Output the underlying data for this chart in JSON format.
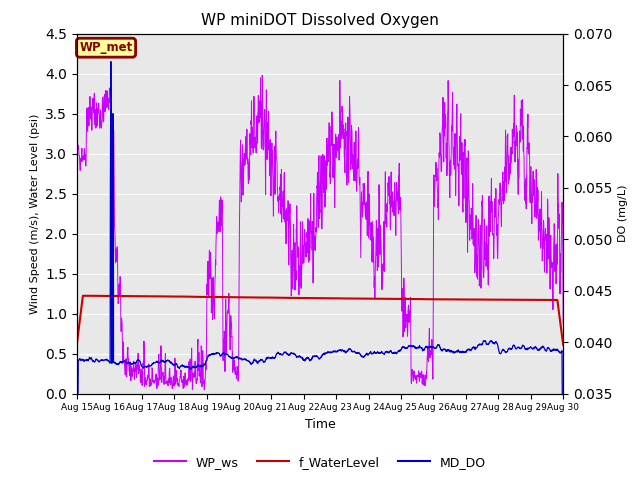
{
  "title": "WP miniDOT Dissolved Oxygen",
  "xlabel": "Time",
  "ylabel_left": "Wind Speed (m/s), Water Level (psi)",
  "ylabel_right": "DO (mg/L)",
  "ylim_left": [
    0.0,
    4.5
  ],
  "ylim_right": [
    0.035,
    0.07
  ],
  "yticks_left": [
    0.0,
    0.5,
    1.0,
    1.5,
    2.0,
    2.5,
    3.0,
    3.5,
    4.0,
    4.5
  ],
  "yticks_right": [
    0.035,
    0.04,
    0.045,
    0.05,
    0.055,
    0.06,
    0.065,
    0.07
  ],
  "xtick_labels": [
    "Aug 15",
    "Aug 16",
    "Aug 17",
    "Aug 18",
    "Aug 19",
    "Aug 20",
    "Aug 21",
    "Aug 22",
    "Aug 23",
    "Aug 24",
    "Aug 25",
    "Aug 26",
    "Aug 27",
    "Aug 28",
    "Aug 29",
    "Aug 30"
  ],
  "annotation_text": "WP_met",
  "annotation_box_facecolor": "#FFFF99",
  "annotation_box_edgecolor": "#8B0000",
  "annotation_text_color": "#8B0000",
  "legend_labels": [
    "WP_ws",
    "f_WaterLevel",
    "MD_DO"
  ],
  "legend_colors": [
    "#CC00FF",
    "#CC0000",
    "#0000CC"
  ],
  "wp_ws_color": "#CC00FF",
  "f_waterlevel_color": "#CC0000",
  "md_do_color": "#0000CC",
  "background_color": "#E8E8E8",
  "grid_color": "#FFFFFF",
  "n_points": 2000,
  "date_start": 15,
  "date_end": 30,
  "seed": 42
}
